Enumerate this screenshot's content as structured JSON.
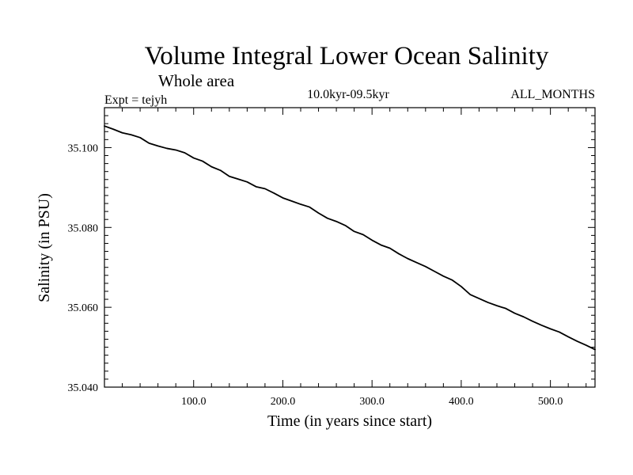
{
  "chart_data": {
    "type": "line",
    "title": "Volume Integral Lower Ocean Salinity",
    "subtitle": "Whole area",
    "experiment": "Expt = tejyh",
    "period": "10.0kyr-09.5kyr",
    "months": "ALL_MONTHS",
    "xlabel": "Time (in years since start)",
    "ylabel": "Salinity (in PSU)",
    "xlim": [
      0,
      550
    ],
    "ylim": [
      35.04,
      35.11
    ],
    "grid": false,
    "x_ticks": [
      {
        "value": 100,
        "label": "100.0"
      },
      {
        "value": 200,
        "label": "200.0"
      },
      {
        "value": 300,
        "label": "300.0"
      },
      {
        "value": 400,
        "label": "400.0"
      },
      {
        "value": 500,
        "label": "500.0"
      }
    ],
    "y_ticks": [
      {
        "value": 35.04,
        "label": "35.040"
      },
      {
        "value": 35.06,
        "label": "35.060"
      },
      {
        "value": 35.08,
        "label": "35.080"
      },
      {
        "value": 35.1,
        "label": "35.100"
      }
    ],
    "x_minor_step": 20,
    "y_minor_step": 0.002,
    "series": [
      {
        "name": "Salinity",
        "color": "#000000",
        "x": [
          0,
          10,
          20,
          30,
          40,
          50,
          60,
          70,
          80,
          90,
          100,
          110,
          120,
          130,
          140,
          150,
          160,
          170,
          180,
          190,
          200,
          210,
          220,
          230,
          240,
          250,
          260,
          270,
          280,
          290,
          300,
          310,
          320,
          330,
          340,
          350,
          360,
          370,
          380,
          390,
          400,
          410,
          420,
          430,
          440,
          450,
          460,
          470,
          480,
          490,
          500,
          510,
          520,
          530,
          540,
          550
        ],
        "y": [
          35.1054,
          35.1046,
          35.1037,
          35.1032,
          35.1025,
          35.1011,
          35.1004,
          35.0998,
          35.0994,
          35.0987,
          35.0974,
          35.0966,
          35.0952,
          35.0943,
          35.0928,
          35.0921,
          35.0914,
          35.0902,
          35.0897,
          35.0886,
          35.0874,
          35.0866,
          35.0858,
          35.0851,
          35.0836,
          35.0823,
          35.0815,
          35.0805,
          35.079,
          35.0782,
          35.0768,
          35.0756,
          35.0748,
          35.0734,
          35.0722,
          35.0712,
          35.0702,
          35.069,
          35.0678,
          35.0668,
          35.0652,
          35.0632,
          35.0622,
          35.0612,
          35.0604,
          35.0597,
          35.0585,
          35.0576,
          35.0565,
          35.0555,
          35.0546,
          35.0538,
          35.0526,
          35.0515,
          35.0505,
          35.0494
        ]
      }
    ]
  }
}
